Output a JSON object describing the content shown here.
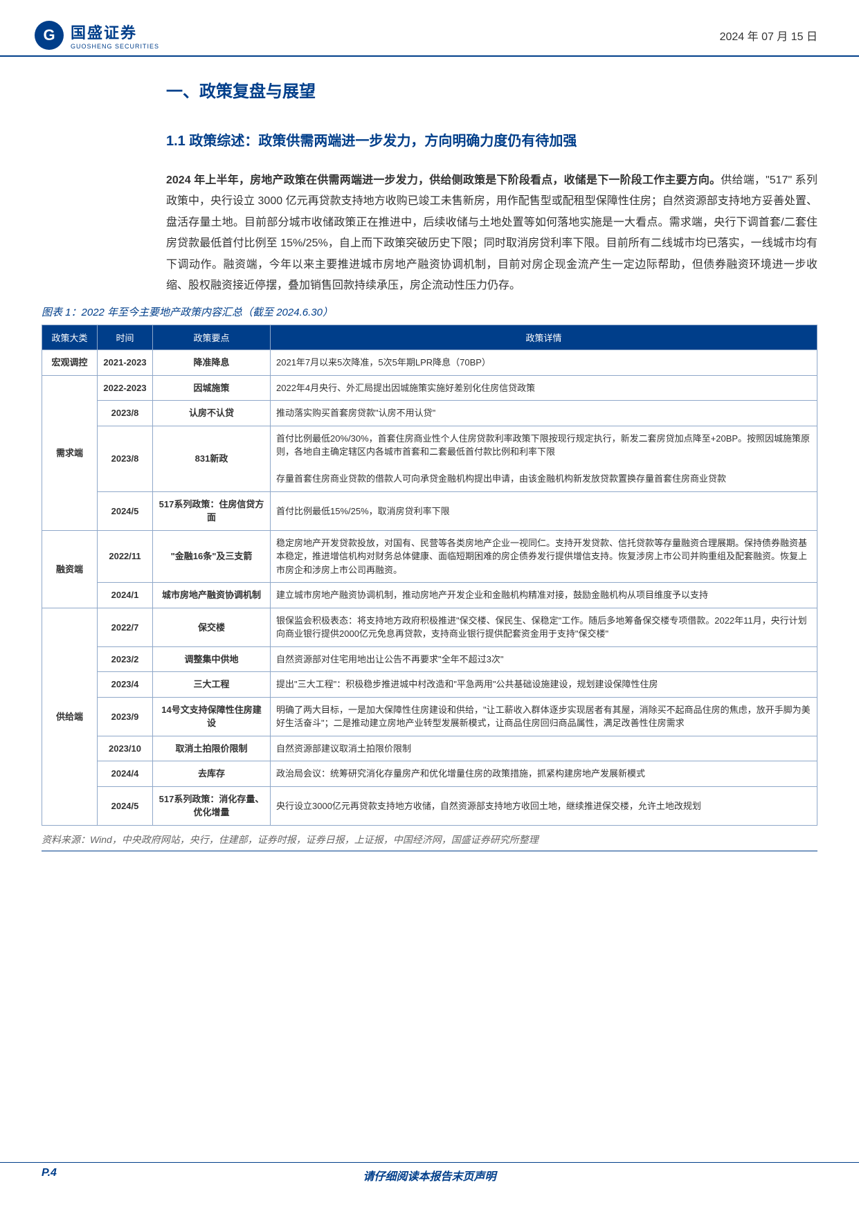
{
  "header": {
    "company_cn": "国盛证券",
    "company_en": "GUOSHENG SECURITIES",
    "logo_letter": "G",
    "date": "2024 年 07 月 15 日"
  },
  "section": {
    "h1": "一、政策复盘与展望",
    "h2": "1.1 政策综述：政策供需两端进一步发力，方向明确力度仍有待加强",
    "para_bold": "2024 年上半年，房地产政策在供需两端进一步发力，供给侧政策是下阶段看点，收储是下一阶段工作主要方向。",
    "para_rest": "供给端，\"517\" 系列政策中，央行设立 3000 亿元再贷款支持地方收购已竣工未售新房，用作配售型或配租型保障性住房；自然资源部支持地方妥善处置、盘活存量土地。目前部分城市收储政策正在推进中，后续收储与土地处置等如何落地实施是一大看点。需求端，央行下调首套/二套住房贷款最低首付比例至 15%/25%，自上而下政策突破历史下限；同时取消房贷利率下限。目前所有二线城市均已落实，一线城市均有下调动作。融资端，今年以来主要推进城市房地产融资协调机制，目前对房企现金流产生一定边际帮助，但债券融资环境进一步收缩、股权融资接近停摆，叠加销售回款持续承压，房企流动性压力仍存。"
  },
  "figure_title": "图表 1：2022 年至今主要地产政策内容汇总（截至 2024.6.30）",
  "table": {
    "headers": [
      "政策大类",
      "时间",
      "政策要点",
      "政策详情"
    ],
    "rows": [
      {
        "cat": "宏观调控",
        "time": "2021-2023",
        "key": "降准降息",
        "detail": "2021年7月以来5次降准，5次5年期LPR降息（70BP）",
        "cat_span": 1
      },
      {
        "cat": "需求端",
        "time": "2022-2023",
        "key": "因城施策",
        "detail": "2022年4月央行、外汇局提出因城施策实施好差别化住房信贷政策",
        "cat_span": 4
      },
      {
        "cat": "",
        "time": "2023/8",
        "key": "认房不认贷",
        "detail": "推动落实购买首套房贷款\"认房不用认贷\""
      },
      {
        "cat": "",
        "time": "2023/8",
        "key": "831新政",
        "detail": "首付比例最低20%/30%，首套住房商业性个人住房贷款利率政策下限按现行规定执行，新发二套房贷加点降至+20BP。按照因城施策原则，各地自主确定辖区内各城市首套和二套最低首付款比例和利率下限\n\n存量首套住房商业贷款的借款人可向承贷金融机构提出申请，由该金融机构新发放贷款置换存量首套住房商业贷款"
      },
      {
        "cat": "",
        "time": "2024/5",
        "key": "517系列政策：住房信贷方面",
        "detail": "首付比例最低15%/25%，取消房贷利率下限"
      },
      {
        "cat": "融资端",
        "time": "2022/11",
        "key": "\"金融16条\"及三支箭",
        "detail": "稳定房地产开发贷款投放，对国有、民营等各类房地产企业一视同仁。支持开发贷款、信托贷款等存量融资合理展期。保持债券融资基本稳定，推进增信机构对财务总体健康、面临短期困难的房企债券发行提供增信支持。恢复涉房上市公司并购重组及配套融资。恢复上市房企和涉房上市公司再融资。",
        "cat_span": 2
      },
      {
        "cat": "",
        "time": "2024/1",
        "key": "城市房地产融资协调机制",
        "detail": "建立城市房地产融资协调机制，推动房地产开发企业和金融机构精准对接，鼓励金融机构从项目维度予以支持"
      },
      {
        "cat": "供给端",
        "time": "2022/7",
        "key": "保交楼",
        "detail": "银保监会积极表态：将支持地方政府积极推进\"保交楼、保民生、保稳定\"工作。随后多地筹备保交楼专项借款。2022年11月，央行计划向商业银行提供2000亿元免息再贷款，支持商业银行提供配套资金用于支持\"保交楼\"",
        "cat_span": 7
      },
      {
        "cat": "",
        "time": "2023/2",
        "key": "调整集中供地",
        "detail": "自然资源部对住宅用地出让公告不再要求\"全年不超过3次\""
      },
      {
        "cat": "",
        "time": "2023/4",
        "key": "三大工程",
        "detail": "提出\"三大工程\"：积极稳步推进城中村改造和\"平急两用\"公共基础设施建设，规划建设保障性住房"
      },
      {
        "cat": "",
        "time": "2023/9",
        "key": "14号文支持保障性住房建设",
        "detail": "明确了两大目标，一是加大保障性住房建设和供给，\"让工薪收入群体逐步实现居者有其屋，消除买不起商品住房的焦虑，放开手脚为美好生活奋斗\"；二是推动建立房地产业转型发展新模式，让商品住房回归商品属性，满足改善性住房需求"
      },
      {
        "cat": "",
        "time": "2023/10",
        "key": "取消土拍限价限制",
        "detail": "自然资源部建议取消土拍限价限制"
      },
      {
        "cat": "",
        "time": "2024/4",
        "key": "去库存",
        "detail": "政治局会议：统筹研究消化存量房产和优化增量住房的政策措施，抓紧构建房地产发展新模式"
      },
      {
        "cat": "",
        "time": "2024/5",
        "key": "517系列政策：消化存量、优化增量",
        "detail": "央行设立3000亿元再贷款支持地方收储，自然资源部支持地方收回土地，继续推进保交楼，允许土地改规划"
      }
    ]
  },
  "source": "资料来源：Wind，中央政府网站，央行，住建部，证券时报，证券日报，上证报，中国经济网，国盛证券研究所整理",
  "footer": {
    "page": "P.4",
    "disclaimer": "请仔细阅读本报告末页声明"
  },
  "colors": {
    "primary": "#003e8a",
    "border": "#8fa8c9",
    "text": "#333333",
    "muted": "#666666"
  }
}
